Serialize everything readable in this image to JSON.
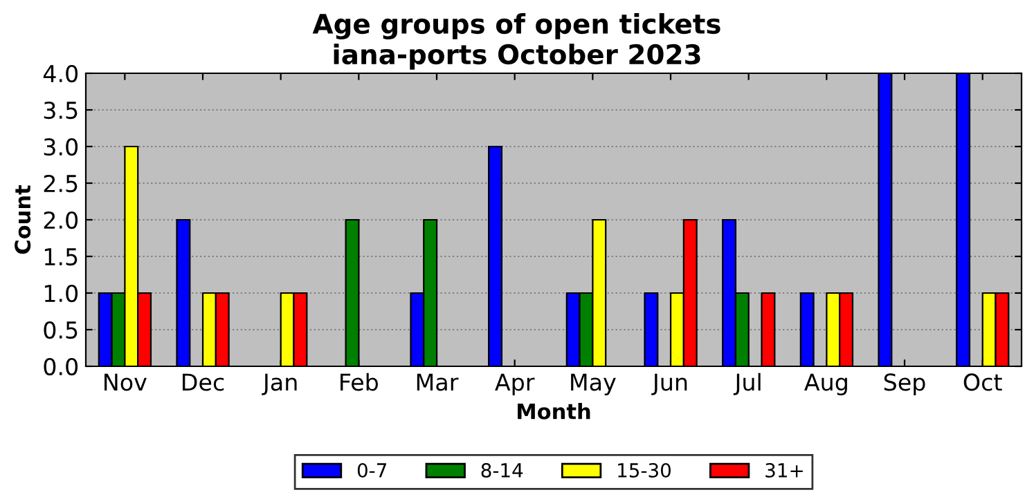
{
  "chart_data": {
    "type": "bar",
    "title": "Age groups of open tickets",
    "subtitle": "iana-ports October 2023",
    "xlabel": "Month",
    "ylabel": "Count",
    "categories": [
      "Nov",
      "Dec",
      "Jan",
      "Feb",
      "Mar",
      "Apr",
      "May",
      "Jun",
      "Jul",
      "Aug",
      "Sep",
      "Oct"
    ],
    "series": [
      {
        "name": "0-7",
        "color": "#0000ff",
        "values": [
          1,
          2,
          0,
          0,
          1,
          3,
          1,
          1,
          2,
          1,
          4,
          4
        ]
      },
      {
        "name": "8-14",
        "color": "#008000",
        "values": [
          1,
          0,
          0,
          2,
          2,
          0,
          1,
          0,
          1,
          0,
          0,
          0
        ]
      },
      {
        "name": "15-30",
        "color": "#ffff00",
        "values": [
          3,
          1,
          1,
          0,
          0,
          0,
          2,
          1,
          0,
          1,
          0,
          1
        ]
      },
      {
        "name": "31+",
        "color": "#ff0000",
        "values": [
          1,
          1,
          1,
          0,
          0,
          0,
          0,
          2,
          1,
          1,
          0,
          1
        ]
      }
    ],
    "ylim": [
      0,
      4
    ],
    "yticks": [
      {
        "value": 0,
        "label": "0.0"
      },
      {
        "value": 0.5,
        "label": "0.5"
      },
      {
        "value": 1,
        "label": "1.0"
      },
      {
        "value": 1.5,
        "label": "1.5"
      },
      {
        "value": 2,
        "label": "2.0"
      },
      {
        "value": 2.5,
        "label": "2.5"
      },
      {
        "value": 3,
        "label": "3.0"
      },
      {
        "value": 3.5,
        "label": "3.5"
      },
      {
        "value": 4,
        "label": "4.0"
      }
    ],
    "grid": "y",
    "legend": "bottom"
  }
}
